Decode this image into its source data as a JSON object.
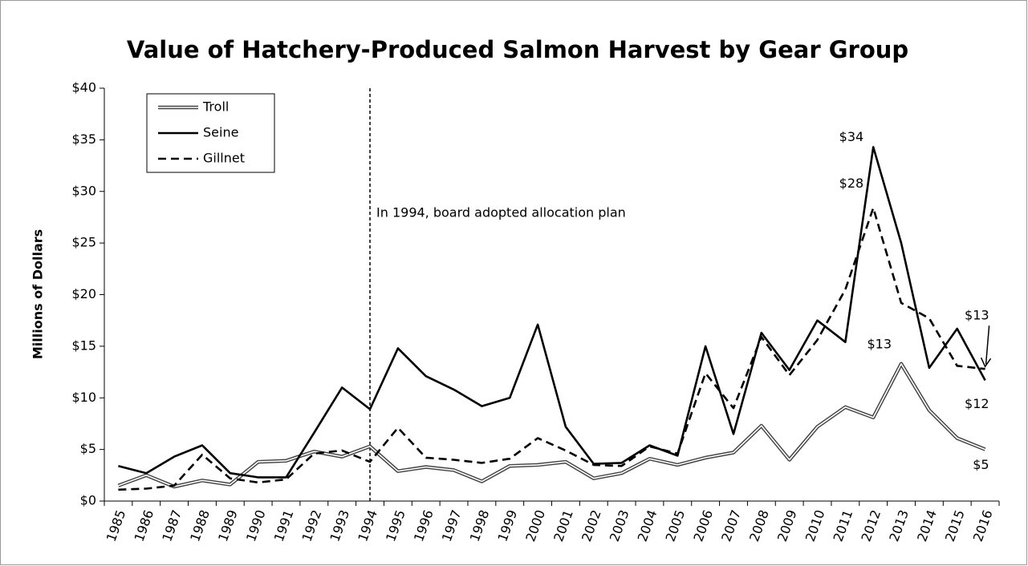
{
  "chart_data": {
    "type": "line",
    "title": "Value of Hatchery-Produced Salmon Harvest by Gear Group",
    "y_label": "Millions of Dollars",
    "annotation": "In 1994, board adopted allocation plan",
    "categories": [
      "1985",
      "1986",
      "1987",
      "1988",
      "1989",
      "1990",
      "1991",
      "1992",
      "1993",
      "1994",
      "1995",
      "1996",
      "1997",
      "1998",
      "1999",
      "2000",
      "2001",
      "2002",
      "2003",
      "2004",
      "2005",
      "2006",
      "2007",
      "2008",
      "2009",
      "2010",
      "2011",
      "2012",
      "2013",
      "2014",
      "2015",
      "2016"
    ],
    "series": [
      {
        "name": "Troll",
        "color": "#444444",
        "style": "double",
        "values": [
          1.5,
          2.5,
          1.4,
          2.0,
          1.6,
          3.8,
          3.9,
          4.8,
          4.3,
          5.3,
          2.9,
          3.3,
          3.0,
          1.9,
          3.4,
          3.5,
          3.8,
          2.2,
          2.7,
          4.1,
          3.5,
          4.2,
          4.7,
          7.3,
          4.0,
          7.2,
          9.1,
          8.1,
          13.3,
          8.8,
          6.1,
          5.0
        ],
        "value_labels": [
          null,
          null,
          null,
          null,
          null,
          null,
          null,
          null,
          null,
          null,
          null,
          null,
          null,
          null,
          null,
          null,
          null,
          null,
          null,
          null,
          null,
          null,
          null,
          null,
          null,
          null,
          null,
          null,
          "$13",
          null,
          null,
          "$5"
        ]
      },
      {
        "name": "Seine",
        "color": "#000000",
        "style": "solid",
        "values": [
          3.4,
          2.7,
          4.3,
          5.4,
          2.7,
          2.3,
          2.3,
          6.6,
          11.0,
          8.9,
          14.8,
          12.1,
          10.8,
          9.2,
          10.0,
          17.1,
          7.2,
          3.6,
          3.7,
          5.4,
          4.4,
          15.0,
          6.5,
          16.3,
          12.7,
          17.5,
          15.4,
          34.3,
          25.0,
          12.9,
          16.7,
          11.7
        ],
        "value_labels": [
          null,
          null,
          null,
          null,
          null,
          null,
          null,
          null,
          null,
          null,
          null,
          null,
          null,
          null,
          null,
          null,
          null,
          null,
          null,
          null,
          null,
          null,
          null,
          null,
          null,
          null,
          null,
          "$34",
          null,
          null,
          null,
          "$12"
        ]
      },
      {
        "name": "Gillnet",
        "color": "#000000",
        "style": "dashed",
        "values": [
          1.1,
          1.2,
          1.5,
          4.5,
          2.2,
          1.8,
          2.1,
          4.6,
          4.9,
          3.8,
          7.1,
          4.2,
          4.0,
          3.7,
          4.1,
          6.1,
          4.9,
          3.5,
          3.4,
          5.3,
          4.6,
          12.4,
          9.0,
          15.9,
          12.2,
          15.6,
          20.5,
          28.4,
          19.2,
          17.7,
          13.1,
          12.8
        ],
        "value_labels": [
          null,
          null,
          null,
          null,
          null,
          null,
          null,
          null,
          null,
          null,
          null,
          null,
          null,
          null,
          null,
          null,
          null,
          null,
          null,
          null,
          null,
          null,
          null,
          null,
          null,
          null,
          null,
          "$28",
          null,
          null,
          null,
          "$13"
        ]
      }
    ],
    "ylim": [
      0,
      40
    ],
    "yticks": [
      {
        "value": 0,
        "label": "$0"
      },
      {
        "value": 5,
        "label": "$5"
      },
      {
        "value": 10,
        "label": "$10"
      },
      {
        "value": 15,
        "label": "$15"
      },
      {
        "value": 20,
        "label": "$20"
      },
      {
        "value": 25,
        "label": "$25"
      },
      {
        "value": 30,
        "label": "$30"
      },
      {
        "value": 35,
        "label": "$35"
      },
      {
        "value": 40,
        "label": "$40"
      }
    ],
    "grid": false,
    "legend": "upper left"
  }
}
